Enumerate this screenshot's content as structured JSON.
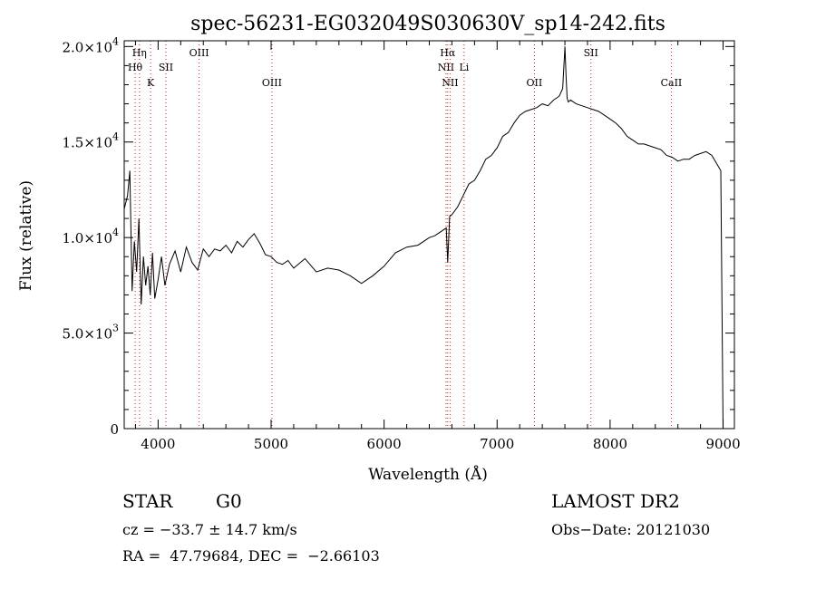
{
  "chart_data": {
    "type": "line",
    "title": "spec-56231-EG032049S030630V_sp14-242.fits",
    "xlabel": "Wavelength (Å)",
    "ylabel": "Flux (relative)",
    "xlim": [
      3700,
      9100
    ],
    "ylim": [
      0,
      20300
    ],
    "x_ticks": [
      4000,
      5000,
      6000,
      7000,
      8000,
      9000
    ],
    "x_tick_labels": [
      "4000",
      "5000",
      "6000",
      "7000",
      "8000",
      "9000"
    ],
    "y_ticks": [
      0,
      5000,
      10000,
      15000,
      20000
    ],
    "y_tick_labels": [
      {
        "mant": "0",
        "exp": ""
      },
      {
        "mant": "5.0×10",
        "exp": "3"
      },
      {
        "mant": "1.0×10",
        "exp": "4"
      },
      {
        "mant": "1.5×10",
        "exp": "4"
      },
      {
        "mant": "2.0×10",
        "exp": "4"
      }
    ],
    "grid": false,
    "series": [
      {
        "x": [
          3700,
          3730,
          3750,
          3770,
          3790,
          3810,
          3830,
          3850,
          3870,
          3890,
          3910,
          3930,
          3950,
          3970,
          4000,
          4030,
          4060,
          4100,
          4150,
          4200,
          4250,
          4300,
          4350,
          4400,
          4450,
          4500,
          4550,
          4600,
          4650,
          4700,
          4750,
          4800,
          4850,
          4900,
          4950,
          5000,
          5050,
          5100,
          5150,
          5200,
          5300,
          5400,
          5500,
          5600,
          5700,
          5800,
          5900,
          6000,
          6100,
          6200,
          6300,
          6400,
          6450,
          6500,
          6550,
          6563,
          6580,
          6600,
          6650,
          6700,
          6750,
          6800,
          6850,
          6900,
          6950,
          7000,
          7050,
          7100,
          7150,
          7200,
          7250,
          7300,
          7350,
          7400,
          7450,
          7500,
          7550,
          7580,
          7600,
          7610,
          7620,
          7630,
          7650,
          7700,
          7750,
          7800,
          7850,
          7900,
          7950,
          8000,
          8050,
          8100,
          8150,
          8200,
          8250,
          8300,
          8350,
          8400,
          8450,
          8500,
          8550,
          8600,
          8650,
          8700,
          8750,
          8800,
          8850,
          8900,
          8950,
          8980,
          9000
        ],
        "y": [
          11500,
          12200,
          13500,
          7200,
          9800,
          8200,
          11000,
          6500,
          9000,
          7500,
          8500,
          7000,
          9200,
          6800,
          7800,
          9000,
          7500,
          8600,
          9300,
          8200,
          9500,
          8700,
          8300,
          9400,
          9000,
          9400,
          9300,
          9600,
          9200,
          9800,
          9500,
          9900,
          10200,
          9700,
          9100,
          9000,
          8700,
          8600,
          8800,
          8400,
          8900,
          8200,
          8400,
          8300,
          8000,
          7600,
          8000,
          8500,
          9200,
          9500,
          9600,
          10000,
          10100,
          10300,
          10500,
          8700,
          11100,
          11200,
          11600,
          12200,
          12800,
          13000,
          13500,
          14100,
          14300,
          14700,
          15300,
          15500,
          16000,
          16400,
          16600,
          16700,
          16800,
          17000,
          16900,
          17200,
          17400,
          17800,
          20000,
          18500,
          17300,
          17100,
          17200,
          17000,
          16900,
          16800,
          16700,
          16600,
          16400,
          16200,
          16000,
          15700,
          15300,
          15100,
          14900,
          14900,
          14800,
          14700,
          14600,
          14300,
          14200,
          14000,
          14100,
          14100,
          14300,
          14400,
          14500,
          14300,
          13800,
          13500,
          0
        ]
      }
    ],
    "line_markers": [
      {
        "label": "Hη",
        "wl": 3835,
        "row": 1
      },
      {
        "label": "Hθ",
        "wl": 3797,
        "row": 2
      },
      {
        "label": "K",
        "wl": 3934,
        "row": 3
      },
      {
        "label": "SII",
        "wl": 4069,
        "row": 2
      },
      {
        "label": "OIII",
        "wl": 4363,
        "row": 1
      },
      {
        "label": "OIII",
        "wl": 5007,
        "row": 3
      },
      {
        "label": "Hα",
        "wl": 6563,
        "row": 1
      },
      {
        "label": "NII",
        "wl": 6548,
        "row": 2
      },
      {
        "label": "Li",
        "wl": 6708,
        "row": 2
      },
      {
        "label": "NII",
        "wl": 6584,
        "row": 3
      },
      {
        "label": "OII",
        "wl": 7330,
        "row": 3
      },
      {
        "label": "SII",
        "wl": 7830,
        "row": 1
      },
      {
        "label": "CaII",
        "wl": 8542,
        "row": 3
      }
    ]
  },
  "info": {
    "class": "STAR",
    "subclass": "G0",
    "survey": "LAMOST DR2",
    "cz": "cz = −33.7 ± 14.7 km/s",
    "obs_date": "Obs−Date: 20121030",
    "radec": "RA =  47.79684, DEC =  −2.66103"
  },
  "colors": {
    "marker": "#d62020",
    "axes": "#000000",
    "spectrum": "#000000"
  }
}
